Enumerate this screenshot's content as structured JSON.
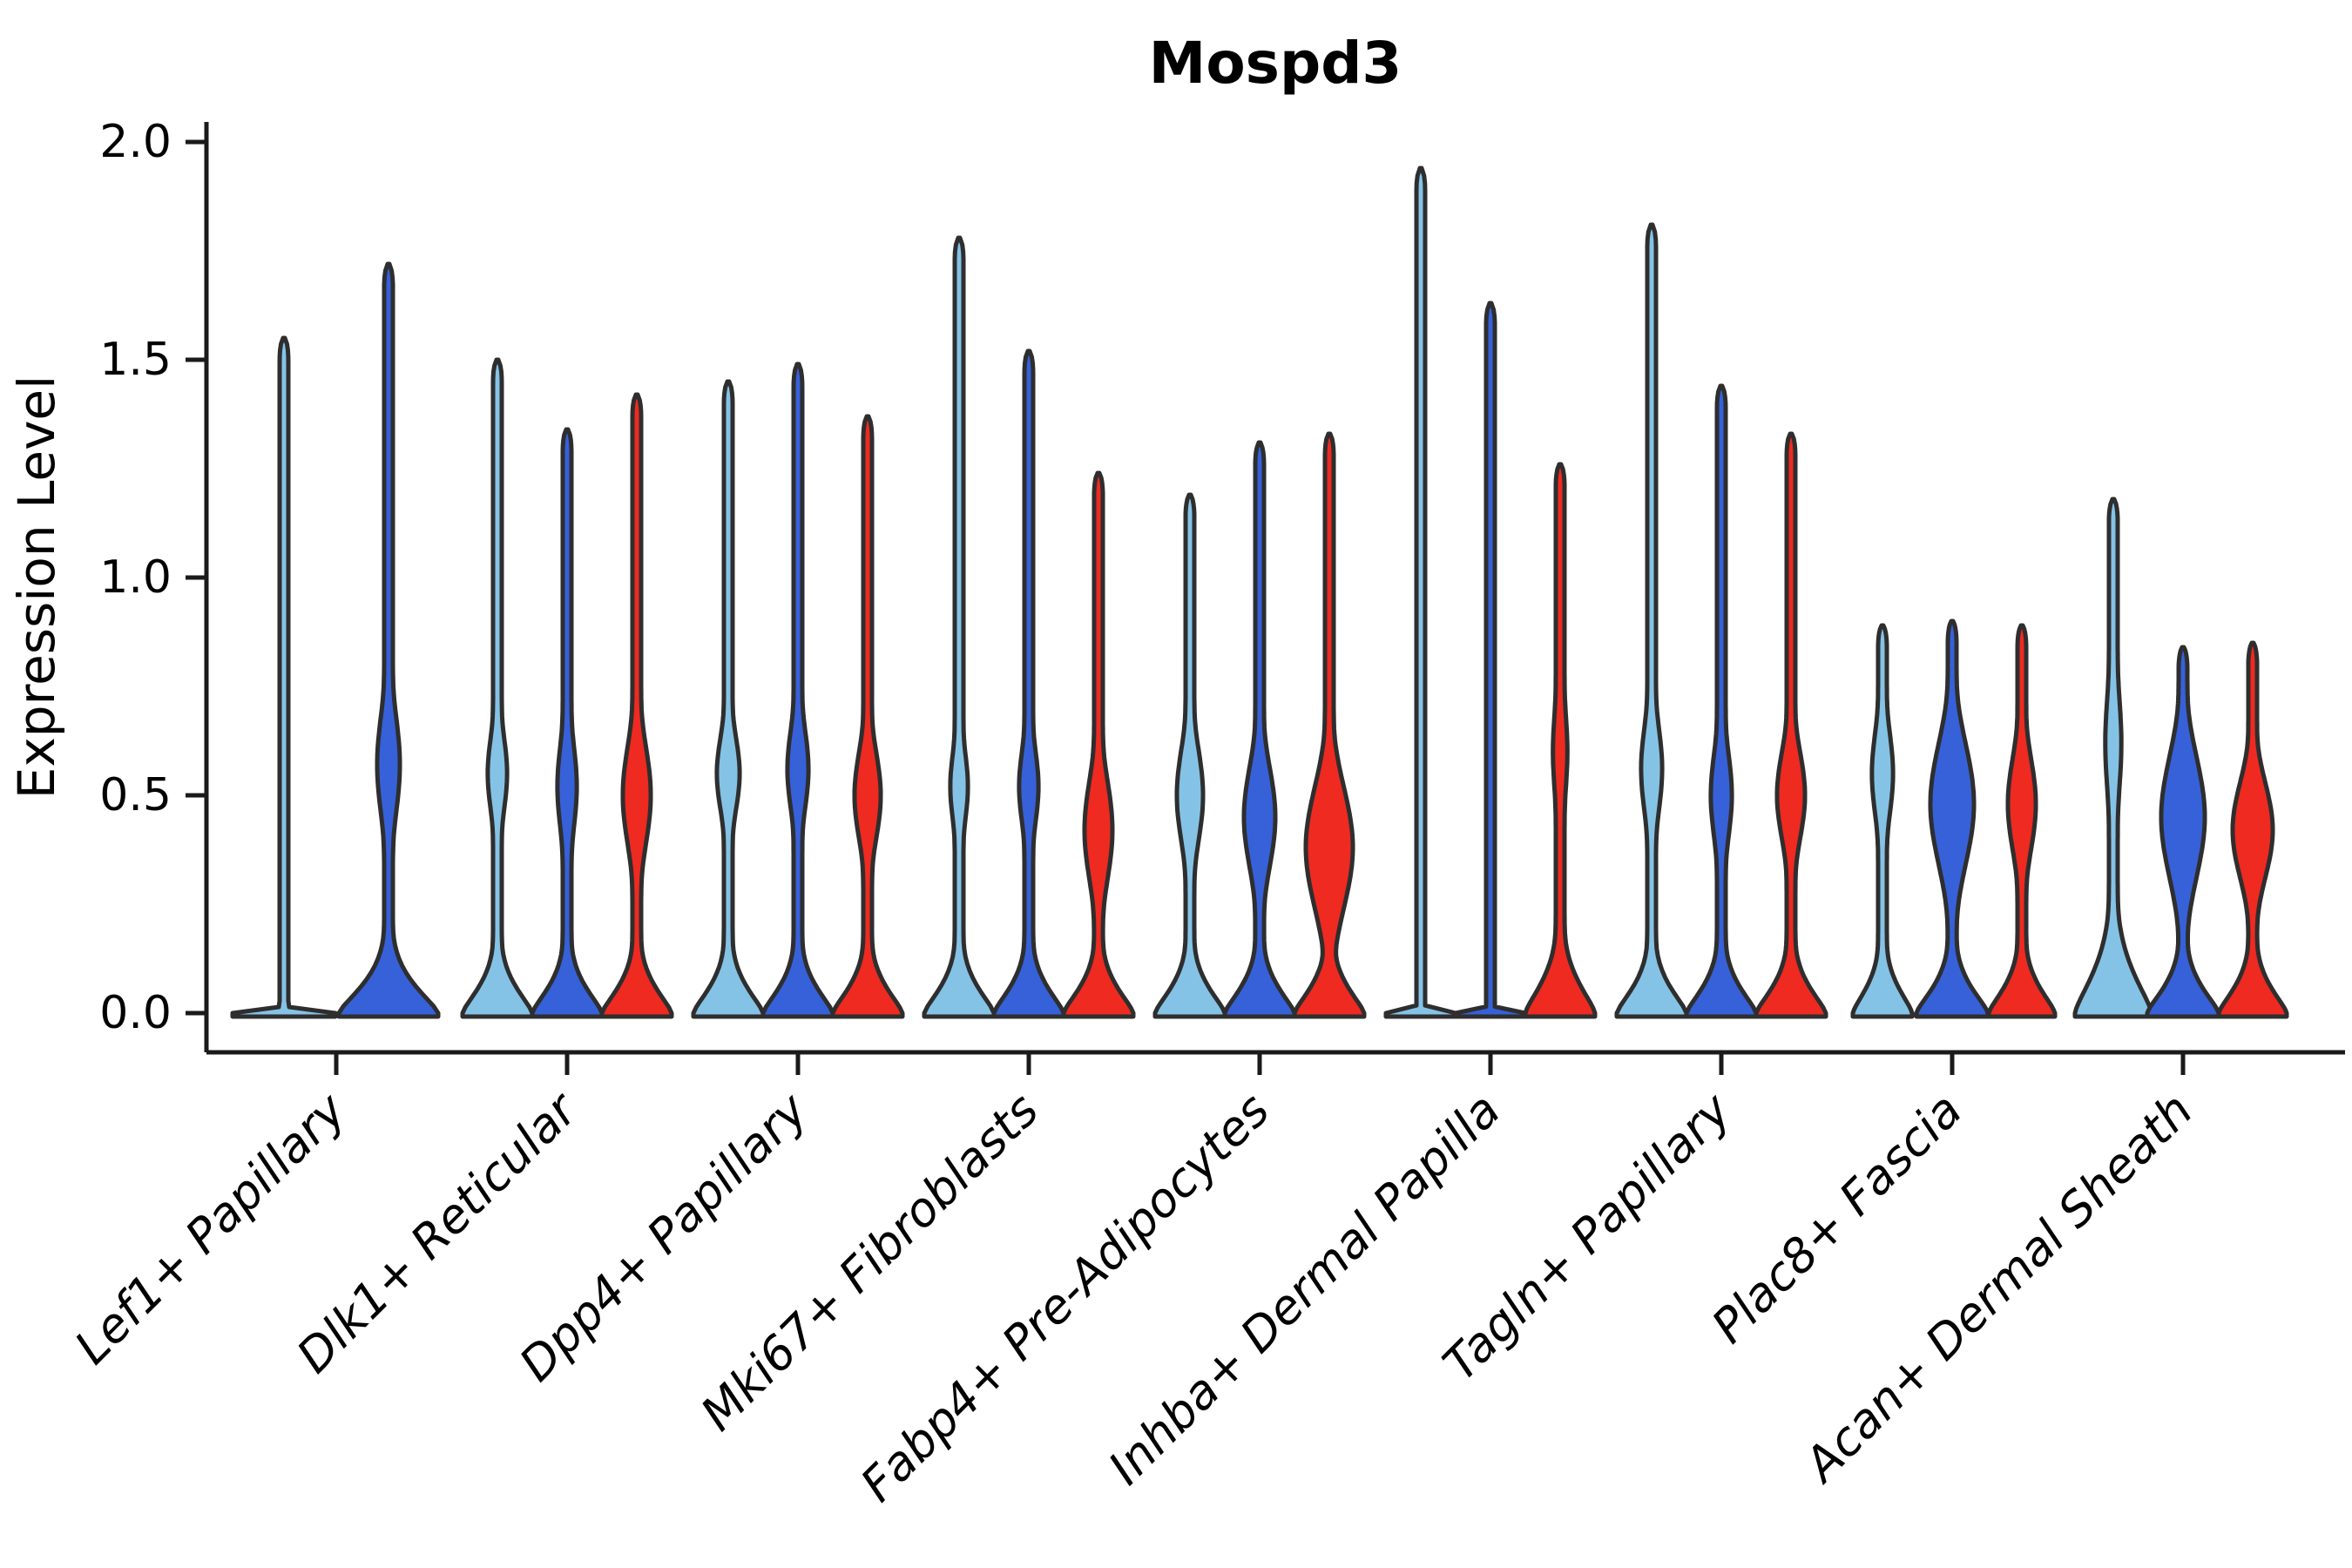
{
  "header": {
    "title": "Mospd3"
  },
  "chart_data": {
    "type": "violin",
    "title": "Mospd3",
    "xlabel": "",
    "ylabel": "Expression Level",
    "ylim": [
      0,
      2
    ],
    "yticks": [
      "0.0",
      "0.5",
      "1.0",
      "1.5",
      "2.0"
    ],
    "ytick_values": [
      0,
      0.5,
      1.0,
      1.5,
      2.0
    ],
    "grid": false,
    "legend_position": "none",
    "categories": [
      "Lef1+ Papillary",
      "Dlk1+ Reticular",
      "Dpp4+ Papillary",
      "Mki67+ Fibroblasts",
      "Fabp4+ Pre-Adipocytes",
      "Inhba+ Dermal Papilla",
      "Tagln+ Papillary",
      "Plac8+ Fascia",
      "Acan+ Dermal Sheath"
    ],
    "colors": {
      "light_blue": "#85C3E6",
      "dark_blue": "#3761D9",
      "red": "#EE2A21",
      "outline": "#2E2E2E",
      "axis": "#1A1A1A"
    },
    "groups": [
      {
        "label": "Lef1+ Papillary",
        "violins": [
          {
            "series": "light_blue",
            "max": 1.55,
            "shape": "flat",
            "offset": -60,
            "base_hw": 59
          },
          {
            "series": "dark_blue",
            "max": 1.72,
            "offset": 60,
            "base_hw": 57,
            "base_sigma": 0.09,
            "bulge_center": 0.57,
            "bulge_hw": 13,
            "bulge_sigma": 0.17
          }
        ]
      },
      {
        "label": "Dlk1+ Reticular",
        "violins": [
          {
            "series": "light_blue",
            "max": 1.5,
            "base_hw": 40,
            "bulge_center": 0.55,
            "bulge_hw": 11,
            "bulge_sigma": 0.13
          },
          {
            "series": "dark_blue",
            "max": 1.34,
            "base_hw": 40,
            "bulge_center": 0.52,
            "bulge_hw": 11,
            "bulge_sigma": 0.15
          },
          {
            "series": "red",
            "max": 1.42,
            "base_hw": 40,
            "bulge_center": 0.5,
            "bulge_hw": 16,
            "bulge_sigma": 0.17
          }
        ]
      },
      {
        "label": "Dpp4+ Papillary",
        "violins": [
          {
            "series": "light_blue",
            "max": 1.45,
            "base_hw": 40,
            "bulge_center": 0.55,
            "bulge_hw": 13,
            "bulge_sigma": 0.13
          },
          {
            "series": "dark_blue",
            "max": 1.49,
            "base_hw": 40,
            "bulge_center": 0.56,
            "bulge_hw": 12,
            "bulge_sigma": 0.14
          },
          {
            "series": "red",
            "max": 1.37,
            "base_hw": 40,
            "bulge_center": 0.5,
            "bulge_hw": 15,
            "bulge_sigma": 0.15
          }
        ]
      },
      {
        "label": "Mki67+ Fibroblasts",
        "violins": [
          {
            "series": "light_blue",
            "max": 1.78,
            "base_hw": 40,
            "bulge_center": 0.52,
            "bulge_hw": 10,
            "bulge_sigma": 0.12
          },
          {
            "series": "dark_blue",
            "max": 1.52,
            "base_hw": 40,
            "bulge_center": 0.52,
            "bulge_hw": 11,
            "bulge_sigma": 0.13
          },
          {
            "series": "red",
            "max": 1.24,
            "base_hw": 40,
            "bulge_center": 0.42,
            "bulge_hw": 16,
            "bulge_sigma": 0.17
          }
        ]
      },
      {
        "label": "Fabp4+ Pre-Adipocytes",
        "violins": [
          {
            "series": "light_blue",
            "max": 1.19,
            "base_hw": 40,
            "bulge_center": 0.5,
            "bulge_hw": 15,
            "bulge_sigma": 0.16
          },
          {
            "series": "dark_blue",
            "max": 1.31,
            "base_hw": 40,
            "bulge_center": 0.45,
            "bulge_hw": 18,
            "bulge_sigma": 0.17
          },
          {
            "series": "red",
            "max": 1.33,
            "base_hw": 40,
            "bulge_center": 0.38,
            "bulge_hw": 27,
            "bulge_sigma": 0.2
          }
        ]
      },
      {
        "label": "Inhba+ Dermal Papilla",
        "violins": [
          {
            "series": "light_blue",
            "max": 1.94,
            "shape": "flat",
            "base_hw": 40
          },
          {
            "series": "dark_blue",
            "max": 1.63,
            "shape": "flat",
            "base_hw": 40
          },
          {
            "series": "red",
            "max": 1.26,
            "base_hw": 40,
            "base_sigma": 0.1,
            "bulge_center": 0.6,
            "bulge_hw": 8,
            "bulge_sigma": 0.15
          }
        ]
      },
      {
        "label": "Tagln+ Papillary",
        "violins": [
          {
            "series": "light_blue",
            "max": 1.81,
            "base_hw": 40,
            "bulge_center": 0.56,
            "bulge_hw": 12,
            "bulge_sigma": 0.15
          },
          {
            "series": "dark_blue",
            "max": 1.44,
            "base_hw": 40,
            "bulge_center": 0.5,
            "bulge_hw": 12,
            "bulge_sigma": 0.15
          },
          {
            "series": "red",
            "max": 1.33,
            "base_hw": 40,
            "bulge_center": 0.5,
            "bulge_hw": 16,
            "bulge_sigma": 0.15
          }
        ]
      },
      {
        "label": "Plac8+ Fascia",
        "violins": [
          {
            "series": "light_blue",
            "max": 0.89,
            "base_hw": 34,
            "bulge_center": 0.55,
            "bulge_hw": 12,
            "bulge_sigma": 0.15
          },
          {
            "series": "dark_blue",
            "max": 0.9,
            "base_hw": 41,
            "bulge_center": 0.48,
            "bulge_hw": 25,
            "bulge_sigma": 0.2
          },
          {
            "series": "red",
            "max": 0.89,
            "base_hw": 38,
            "bulge_center": 0.48,
            "bulge_hw": 16,
            "bulge_sigma": 0.16
          }
        ]
      },
      {
        "label": "Acan+ Dermal Sheath",
        "violins": [
          {
            "series": "light_blue",
            "max": 1.18,
            "base_hw": 44,
            "base_sigma": 0.13,
            "bulge_center": 0.62,
            "bulge_hw": 9,
            "bulge_sigma": 0.18
          },
          {
            "series": "dark_blue",
            "max": 0.84,
            "base_hw": 41,
            "bulge_center": 0.45,
            "bulge_hw": 25,
            "bulge_sigma": 0.2
          },
          {
            "series": "red",
            "max": 0.85,
            "base_hw": 39,
            "bulge_center": 0.42,
            "bulge_hw": 23,
            "bulge_sigma": 0.16
          }
        ]
      }
    ]
  }
}
